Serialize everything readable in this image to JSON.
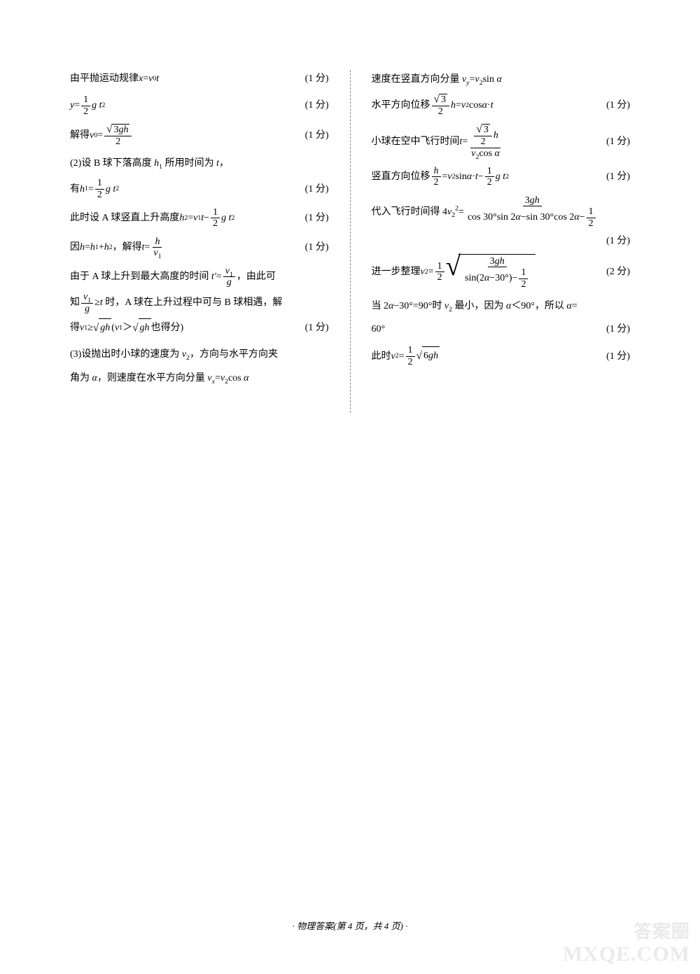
{
  "leftCol": {
    "l1_text": "由平抛运动规律 <span class='it'>x</span>=<span class='it'>v</span><sub>0</sub><span class='it'>t</span>",
    "l1_pts": "(1 分)",
    "l2_text": "<span class='it'>y</span>=<span class='frac'><span class='num'>1</span><span class='den'>2</span></span><span class='it'>g t</span><sup>2</sup>",
    "l2_pts": "(1 分)",
    "l3_text": "解得 <span class='it'>v</span><sub>0</sub>=<span class='frac'><span class='num'><span class='sqrt'><span class='sqrt-sym'>√</span><span class='sqrt-body'>3<span class='it'>gh</span></span></span></span><span class='den'>2</span></span>",
    "l3_pts": "(1 分)",
    "l4_text": "(2)设 B 球下落高度 <span class='it'>h</span><sub>1</sub> 所用时间为 <span class='it'>t</span>，",
    "l5_text": "有 <span class='it'>h</span><sub>1</sub>=<span class='frac'><span class='num'>1</span><span class='den'>2</span></span><span class='it'>g t</span><sup>2</sup>",
    "l5_pts": "(1 分)",
    "l6_text": "此时设 A 球竖直上升高度 <span class='it'>h</span><sub>2</sub>=<span class='it'>v</span><sub>1</sub><span class='it'>t</span>−<span class='frac'><span class='num'>1</span><span class='den'>2</span></span><span class='it'>g t</span><sup>2</sup>",
    "l6_pts": "(1 分)",
    "l7_text": "因 <span class='it'>h</span>=<span class='it'>h</span><sub>1</sub>+<span class='it'>h</span><sub>2</sub>，解得 <span class='it'>t</span>=<span class='frac'><span class='num'><span class='it'>h</span></span><span class='den'><span class='it'>v</span><sub>1</sub></span></span>",
    "l7_pts": "(1 分)",
    "l8_text": "由于 A 球上升到最大高度的时间 <span class='it'>t′</span>=<span class='frac'><span class='num'><span class='it'>v</span><sub>1</sub></span><span class='den'><span class='it'>g</span></span></span>，由此可",
    "l9_text": "知<span class='frac'><span class='num'><span class='it'>v</span><sub>1</sub></span><span class='den'><span class='it'>g</span></span></span>≥<span class='it'>t</span> 时，A 球在上升过程中可与 B 球相遇，解",
    "l10_text": "得 <span class='it'>v</span><sub>1</sub>≥<span class='sqrt'><span class='sqrt-sym'>√</span><span class='sqrt-body'><span class='it'>gh</span></span></span> (<span class='it'>v</span><sub>1</sub>＞<span class='sqrt'><span class='sqrt-sym'>√</span><span class='sqrt-body'><span class='it'>gh</span></span></span> 也得分)",
    "l10_pts": "(1 分)",
    "l11_text": "(3)设抛出时小球的速度为 <span class='it'>v</span><sub>2</sub>，方向与水平方向夹",
    "l12_text": "角为 <span class='it'>α</span>，则速度在水平方向分量 <span class='it'>v</span><sub><span class='it'>x</span></sub>=<span class='it'>v</span><sub>2</sub>cos <span class='it'>α</span>"
  },
  "rightCol": {
    "r1_text": "速度在竖直方向分量 <span class='it'>v</span><sub><span class='it'>y</span></sub>=<span class='it'>v</span><sub>2</sub>sin <span class='it'>α</span>",
    "r2_text": "水平方向位移<span class='frac'><span class='num'><span class='sqrt'><span class='sqrt-sym'>√</span><span class='sqrt-body'>3</span></span></span><span class='den'>2</span></span><span class='it'>h</span>=<span class='it'>v</span><sub>2</sub>cos <span class='it'>α</span> · <span class='it'>t</span>",
    "r2_pts": "(1 分)",
    "r3_text": "小球在空中飞行时间 <span class='it'>t</span>=<span class='frac'><span class='num'><span class='frac'><span class='num'><span class='sqrt'><span class='sqrt-sym'>√</span><span class='sqrt-body'>3</span></span></span><span class='den'>2</span></span><span class='it'>h</span></span><span class='den'><span class='it'>v</span><sub>2</sub>cos <span class='it'>α</span></span></span>",
    "r3_pts": "(1 分)",
    "r4_text": "竖直方向位移<span class='frac'><span class='num'><span class='it'>h</span></span><span class='den'>2</span></span>=<span class='it'>v</span><sub>2</sub>sin <span class='it'>α</span> · <span class='it'>t</span>−<span class='frac'><span class='num'>1</span><span class='den'>2</span></span><span class='it'>g t</span><sup>2</sup>",
    "r4_pts": "(1 分)",
    "r5_text": "代入飞行时间得 4<span class='it'>v</span><sub>2</sub><sup>2</sup>=<span class='frac'><span class='num'>3<span class='it'>gh</span></span><span class='den'>cos 30°sin 2<span class='it'>α</span>−sin 30°cos 2<span class='it'>α</span>−<span class='frac'><span class='num'>1</span><span class='den'>2</span></span></span></span>",
    "r5_pts": "(1 分)",
    "r6_text": "进一步整理 <span class='it'>v</span><sub>2</sub>=<span class='frac'><span class='num'>1</span><span class='den'>2</span></span><span class='big-sqrt'><span class='big-sqrt-sym'>√</span><span class='big-sqrt-body'><span class='frac'><span class='num'>3<span class='it'>gh</span></span><span class='den'>sin(2<span class='it'>α</span>−30°)−<span class='frac'><span class='num'>1</span><span class='den'>2</span></span></span></span></span></span>",
    "r6_pts": "(2 分)",
    "r7_text": "当 2<span class='it'>α</span>−30°=90°时 <span class='it'>v</span><sub>2</sub> 最小，因为 <span class='it'>α</span>＜90°，所以 <span class='it'>α</span>=",
    "r8_text": "60°",
    "r8_pts": "(1 分)",
    "r9_text": "此时 <span class='it'>v</span><sub>2</sub>=<span class='frac'><span class='num'>1</span><span class='den'>2</span></span><span class='sqrt'><span class='sqrt-sym'>√</span><span class='sqrt-body'>6<span class='it'>gh</span></span></span>",
    "r9_pts": "(1 分)"
  },
  "footer": "· 物理答案(第 4 页，共 4 页) ·",
  "watermark_cn": "答案圈",
  "watermark_en": "MXQE.COM"
}
